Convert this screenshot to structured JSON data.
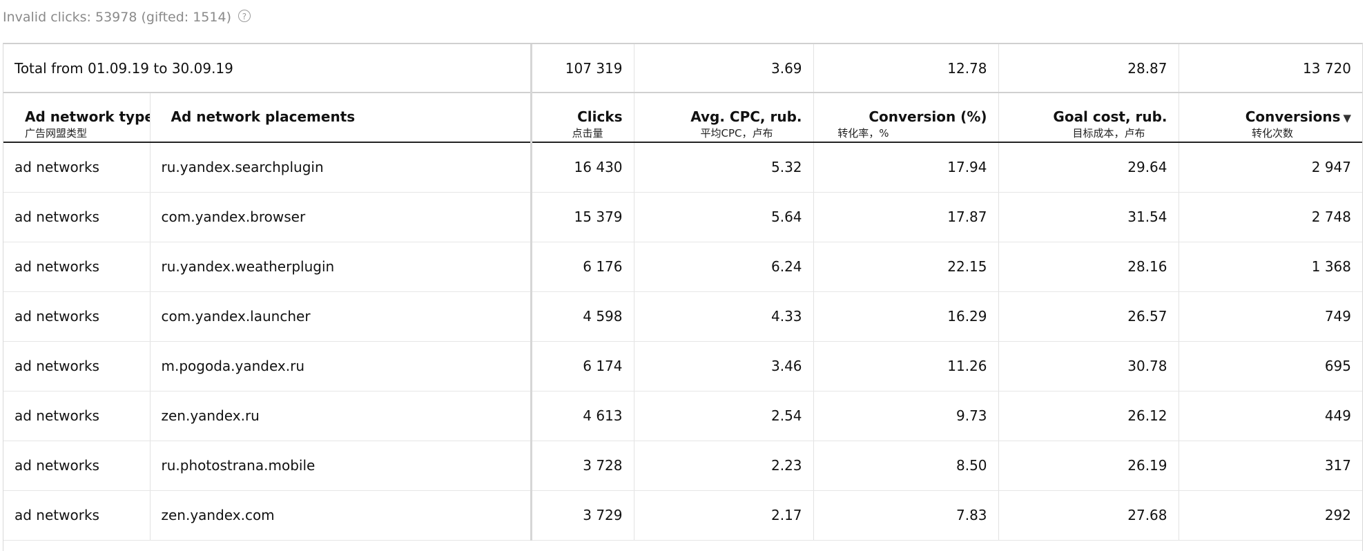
{
  "invalid_clicks": {
    "text": "Invalid clicks: 53978 (gifted: 1514)",
    "help_glyph": "?"
  },
  "total": {
    "label": "Total from 01.09.19 to 30.09.19",
    "clicks": "107 319",
    "avg_cpc": "3.69",
    "conversion": "12.78",
    "goal_cost": "28.87",
    "conversions": "13 720"
  },
  "headers": {
    "type": {
      "label": "Ad network type",
      "sub": "广告网盟类型"
    },
    "placement": {
      "label": "Ad network placements",
      "sub": ""
    },
    "clicks": {
      "label": "Clicks",
      "sub": "点击量"
    },
    "avg_cpc": {
      "label": "Avg. CPC, rub.",
      "sub": "平均CPC，卢布"
    },
    "conversion": {
      "label": "Conversion (%)",
      "sub": "转化率，%"
    },
    "goal_cost": {
      "label": "Goal cost, rub.",
      "sub": "目标成本，卢布"
    },
    "conversions": {
      "label": "Conversions",
      "sub": "转化次数",
      "sort_glyph": "▼"
    }
  },
  "rows": [
    {
      "type": "ad networks",
      "placement": "ru.yandex.searchplugin",
      "clicks": "16 430",
      "avg_cpc": "5.32",
      "conversion": "17.94",
      "goal_cost": "29.64",
      "conversions": "2 947"
    },
    {
      "type": "ad networks",
      "placement": "com.yandex.browser",
      "clicks": "15 379",
      "avg_cpc": "5.64",
      "conversion": "17.87",
      "goal_cost": "31.54",
      "conversions": "2 748"
    },
    {
      "type": "ad networks",
      "placement": "ru.yandex.weatherplugin",
      "clicks": "6 176",
      "avg_cpc": "6.24",
      "conversion": "22.15",
      "goal_cost": "28.16",
      "conversions": "1 368"
    },
    {
      "type": "ad networks",
      "placement": "com.yandex.launcher",
      "clicks": "4 598",
      "avg_cpc": "4.33",
      "conversion": "16.29",
      "goal_cost": "26.57",
      "conversions": "749"
    },
    {
      "type": "ad networks",
      "placement": "m.pogoda.yandex.ru",
      "clicks": "6 174",
      "avg_cpc": "3.46",
      "conversion": "11.26",
      "goal_cost": "30.78",
      "conversions": "695"
    },
    {
      "type": "ad networks",
      "placement": "zen.yandex.ru",
      "clicks": "4 613",
      "avg_cpc": "2.54",
      "conversion": "9.73",
      "goal_cost": "26.12",
      "conversions": "449"
    },
    {
      "type": "ad networks",
      "placement": "ru.photostrana.mobile",
      "clicks": "3 728",
      "avg_cpc": "2.23",
      "conversion": "8.50",
      "goal_cost": "26.19",
      "conversions": "317"
    },
    {
      "type": "ad networks",
      "placement": "zen.yandex.com",
      "clicks": "3 729",
      "avg_cpc": "2.17",
      "conversion": "7.83",
      "goal_cost": "27.68",
      "conversions": "292"
    }
  ]
}
